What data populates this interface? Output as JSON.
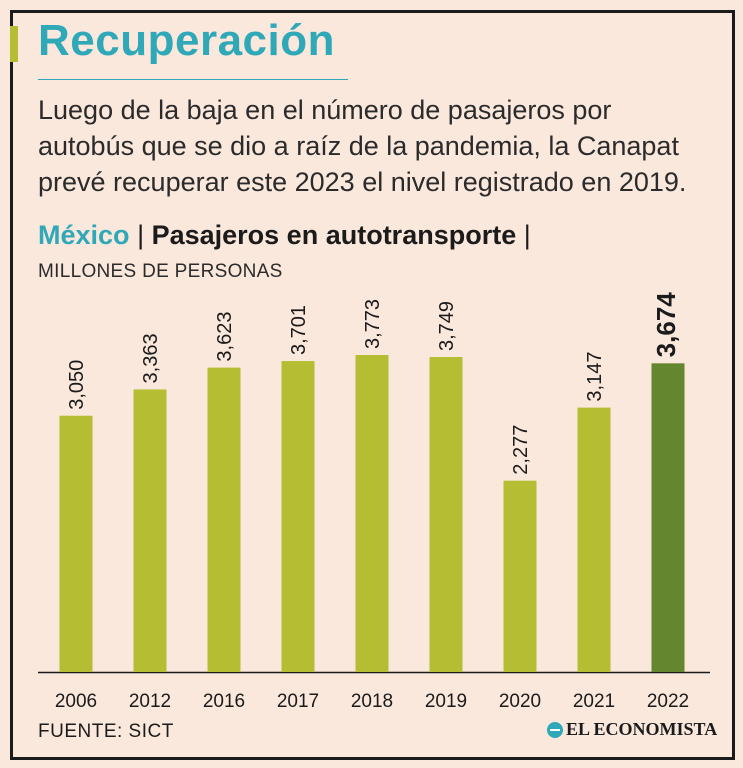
{
  "header": {
    "title": "Recuperación",
    "description": "Luego de la baja en el número de pasajeros por autobús que se dio a raíz de la pandemia, la Canapat prevé recuperar este 2023 el nivel registrado en 2019."
  },
  "subtitle": {
    "country": "México",
    "separator": "|",
    "label": "Pasajeros en autotransporte"
  },
  "units": "MILLONES DE PERSONAS",
  "chart_data": {
    "type": "bar",
    "title": "Pasajeros en autotransporte",
    "ylabel": "MILLONES DE PERSONAS",
    "xlabel": "",
    "categories": [
      "2006",
      "2012",
      "2016",
      "2017",
      "2018",
      "2019",
      "2020",
      "2021",
      "2022"
    ],
    "values": [
      3050,
      3363,
      3623,
      3701,
      3773,
      3749,
      2277,
      3147,
      3674
    ],
    "value_labels": [
      "3,050",
      "3,363",
      "3,623",
      "3,701",
      "3,773",
      "3,749",
      "2,277",
      "3,147",
      "3,674"
    ],
    "highlight_index": 8,
    "ylim": [
      0,
      3950
    ],
    "grid": false
  },
  "colors": {
    "bar": "#b5bd33",
    "highlight": "#64862e",
    "accent": "#2fa8b8",
    "background": "#fbe8dc",
    "text": "#1b1b1b"
  },
  "footer": {
    "source": "FUENTE: SICT",
    "brand": "EL ECONOMISTA",
    "brand_icon": "el-economista-logo-icon"
  }
}
